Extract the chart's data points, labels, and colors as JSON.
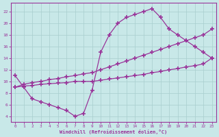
{
  "xlabel": "Windchill (Refroidissement éolien,°C)",
  "bg_color": "#c8e8e8",
  "grid_color": "#a8cece",
  "line_color": "#993399",
  "xlim": [
    -0.5,
    23.5
  ],
  "ylim": [
    3,
    23.5
  ],
  "xticks": [
    0,
    1,
    2,
    3,
    4,
    5,
    6,
    7,
    8,
    9,
    10,
    11,
    12,
    13,
    14,
    15,
    16,
    17,
    18,
    19,
    20,
    21,
    22,
    23
  ],
  "yticks": [
    4,
    6,
    8,
    10,
    12,
    14,
    16,
    18,
    20,
    22
  ],
  "curve_x": [
    0,
    1,
    2,
    3,
    4,
    5,
    6,
    7,
    8,
    9,
    10,
    11,
    12,
    13,
    14,
    15,
    16,
    17,
    18,
    19,
    20,
    21,
    22,
    23
  ],
  "curve_y": [
    11,
    9,
    7,
    6.5,
    6,
    5.5,
    5,
    4,
    4.5,
    8.5,
    15,
    18,
    20,
    21,
    21.5,
    22,
    22.5,
    21,
    19,
    18,
    17,
    16,
    15,
    14
  ],
  "diag1_x": [
    0,
    1,
    2,
    3,
    4,
    5,
    6,
    7,
    8,
    9,
    10,
    11,
    12,
    13,
    14,
    15,
    16,
    17,
    18,
    19,
    20,
    21,
    22,
    23
  ],
  "diag1_y": [
    9,
    9.5,
    9.8,
    10,
    10.3,
    10.5,
    10.8,
    11,
    11.3,
    11.5,
    12,
    12.5,
    13,
    13.5,
    14,
    14.5,
    15,
    15.5,
    16,
    16.5,
    17,
    17.5,
    18,
    19
  ],
  "diag2_x": [
    0,
    1,
    2,
    3,
    4,
    5,
    6,
    7,
    8,
    9,
    10,
    11,
    12,
    13,
    14,
    15,
    16,
    17,
    18,
    19,
    20,
    21,
    22,
    23
  ],
  "diag2_y": [
    9,
    9.2,
    9.3,
    9.5,
    9.6,
    9.7,
    9.8,
    10,
    10,
    10,
    10.2,
    10.4,
    10.6,
    10.8,
    11,
    11.2,
    11.5,
    11.7,
    12,
    12.2,
    12.5,
    12.7,
    13,
    14
  ]
}
